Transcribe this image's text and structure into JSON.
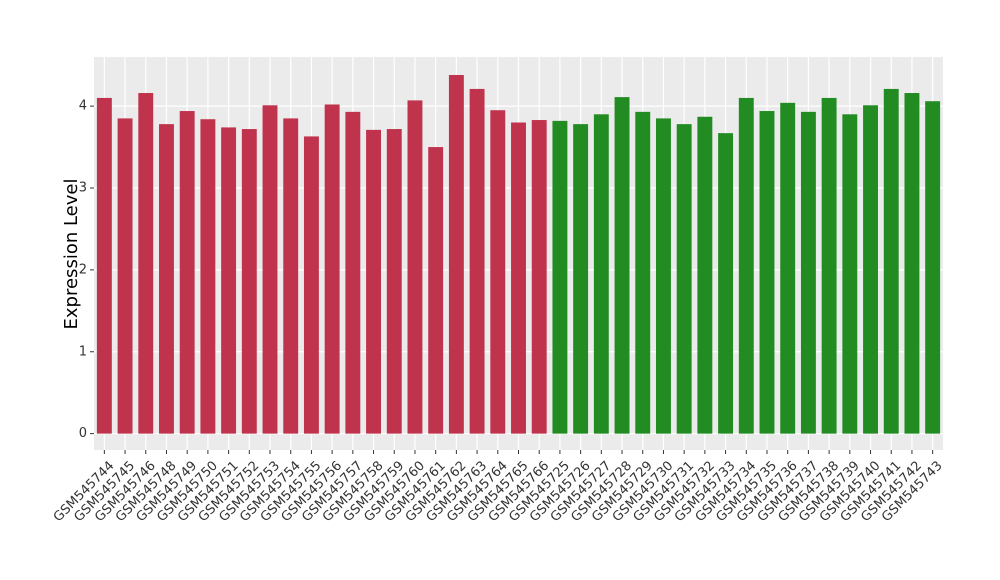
{
  "chart_data": {
    "type": "bar",
    "y_label": "Expression Level",
    "categories": [
      "GSM545744",
      "GSM545745",
      "GSM545746",
      "GSM545748",
      "GSM545749",
      "GSM545750",
      "GSM545751",
      "GSM545752",
      "GSM545753",
      "GSM545754",
      "GSM545755",
      "GSM545756",
      "GSM545757",
      "GSM545758",
      "GSM545759",
      "GSM545760",
      "GSM545761",
      "GSM545762",
      "GSM545763",
      "GSM545764",
      "GSM545765",
      "GSM545766",
      "GSM545725",
      "GSM545726",
      "GSM545727",
      "GSM545728",
      "GSM545729",
      "GSM545730",
      "GSM545731",
      "GSM545732",
      "GSM545733",
      "GSM545734",
      "GSM545735",
      "GSM545736",
      "GSM545737",
      "GSM545738",
      "GSM545739",
      "GSM545740",
      "GSM545741",
      "GSM545742",
      "GSM545743"
    ],
    "values": [
      4.1,
      3.85,
      4.16,
      3.78,
      3.94,
      3.84,
      3.74,
      3.72,
      4.01,
      3.85,
      3.63,
      4.02,
      3.93,
      3.71,
      3.72,
      4.07,
      3.5,
      4.38,
      4.21,
      3.95,
      3.8,
      3.83,
      3.82,
      3.78,
      3.9,
      4.11,
      3.93,
      3.85,
      3.78,
      3.87,
      3.67,
      4.1,
      3.94,
      4.04,
      3.93,
      4.1,
      3.9,
      4.01,
      4.21,
      4.16,
      4.06
    ],
    "colors": [
      "#c0334d",
      "#c0334d",
      "#c0334d",
      "#c0334d",
      "#c0334d",
      "#c0334d",
      "#c0334d",
      "#c0334d",
      "#c0334d",
      "#c0334d",
      "#c0334d",
      "#c0334d",
      "#c0334d",
      "#c0334d",
      "#c0334d",
      "#c0334d",
      "#c0334d",
      "#c0334d",
      "#c0334d",
      "#c0334d",
      "#c0334d",
      "#c0334d",
      "#228b22",
      "#228b22",
      "#228b22",
      "#228b22",
      "#228b22",
      "#228b22",
      "#228b22",
      "#228b22",
      "#228b22",
      "#228b22",
      "#228b22",
      "#228b22",
      "#228b22",
      "#228b22",
      "#228b22",
      "#228b22",
      "#228b22",
      "#228b22",
      "#228b22"
    ],
    "ylim": [
      -0.2,
      4.6
    ],
    "yticks": [
      0,
      1,
      2,
      3,
      4
    ],
    "grid": true
  }
}
